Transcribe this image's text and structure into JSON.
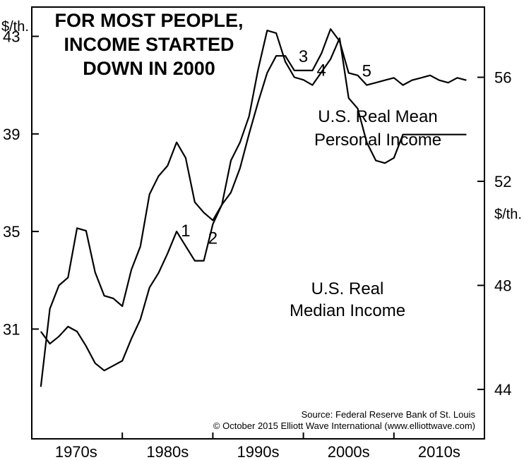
{
  "chart_data": {
    "type": "line",
    "title": "FOR MOST PEOPLE, INCOME STARTED DOWN IN 2000",
    "title_lines": [
      "FOR MOST PEOPLE,",
      "INCOME STARTED",
      "DOWN IN 2000"
    ],
    "x_tick_labels": [
      "1970s",
      "1980s",
      "1990s",
      "2000s",
      "2010s"
    ],
    "y_left": {
      "unit": "$/th.",
      "ticks": [
        31,
        35,
        39,
        43
      ],
      "range": [
        26.5,
        44.2
      ]
    },
    "y_right": {
      "unit": "$/th.",
      "ticks": [
        44,
        48,
        52,
        56
      ],
      "range": [
        42.1,
        58.7
      ]
    },
    "grid": false,
    "series": [
      {
        "name": "U.S. Real Mean Personal Income",
        "label_lines": [
          "U.S. Real Mean",
          "Personal Income"
        ],
        "axis": "left",
        "x": [
          1967,
          1968,
          1969,
          1970,
          1971,
          1972,
          1973,
          1974,
          1975,
          1976,
          1977,
          1978,
          1979,
          1980,
          1981,
          1982,
          1983,
          1984,
          1985,
          1986,
          1987,
          1988,
          1989,
          1990,
          1991,
          1992,
          1993,
          1994,
          1995,
          1996,
          1997,
          1998,
          1999,
          2000,
          2001,
          2002,
          2003,
          2004,
          2005,
          2006,
          2007,
          2008,
          2009,
          2010,
          2011,
          2012,
          2013,
          2014
        ],
        "values": [
          30.9,
          30.4,
          30.7,
          31.1,
          30.9,
          30.3,
          29.6,
          29.3,
          29.5,
          29.7,
          30.6,
          31.4,
          32.7,
          33.3,
          34.1,
          35.0,
          34.4,
          33.8,
          33.8,
          35.3,
          36.1,
          36.6,
          37.6,
          39.0,
          40.3,
          41.5,
          42.2,
          42.2,
          41.6,
          41.6,
          41.6,
          42.3,
          43.3,
          42.8,
          41.5,
          41.4,
          41.0,
          41.1,
          41.2,
          41.3,
          41.0,
          41.2,
          41.3,
          41.4,
          41.2,
          41.1,
          41.3,
          41.2
        ],
        "wave_labels": [
          {
            "label": "1",
            "x": 1983
          },
          {
            "label": "2",
            "x": 1986
          },
          {
            "label": "3",
            "x": 1996
          },
          {
            "label": "4",
            "x": 1998
          },
          {
            "label": "5",
            "x": 2003
          }
        ]
      },
      {
        "name": "U.S. Real Median Income",
        "label_lines": [
          "U.S. Real",
          "Median Income"
        ],
        "axis": "right",
        "x": [
          1967,
          1968,
          1969,
          1970,
          1971,
          1972,
          1973,
          1974,
          1975,
          1976,
          1977,
          1978,
          1979,
          1980,
          1981,
          1982,
          1983,
          1984,
          1985,
          1986,
          1987,
          1988,
          1989,
          1990,
          1991,
          1992,
          1993,
          1994,
          1995,
          1996,
          1997,
          1998,
          1999,
          2000,
          2001,
          2002,
          2003,
          2004,
          2005,
          2006,
          2007,
          2008,
          2009,
          2010,
          2011,
          2012,
          2013,
          2014
        ],
        "values": [
          44.1,
          47.1,
          48.0,
          48.3,
          50.2,
          50.1,
          48.5,
          47.6,
          47.5,
          47.2,
          48.6,
          49.5,
          51.5,
          52.2,
          52.6,
          53.5,
          52.9,
          51.2,
          50.8,
          50.5,
          51.1,
          52.8,
          53.5,
          54.5,
          56.3,
          57.8,
          57.7,
          56.6,
          56.0,
          55.9,
          55.7,
          56.2,
          56.7,
          57.5,
          55.2,
          54.8,
          53.5,
          52.8,
          52.7,
          52.9,
          53.8,
          53.8,
          53.8,
          53.8,
          53.8,
          53.8,
          53.8,
          53.8
        ]
      }
    ]
  },
  "source_lines": [
    "Source: Federal Reserve Bank of St. Louis",
    "© October 2015 Elliott Wave International (www.elliottwave.com)"
  ]
}
